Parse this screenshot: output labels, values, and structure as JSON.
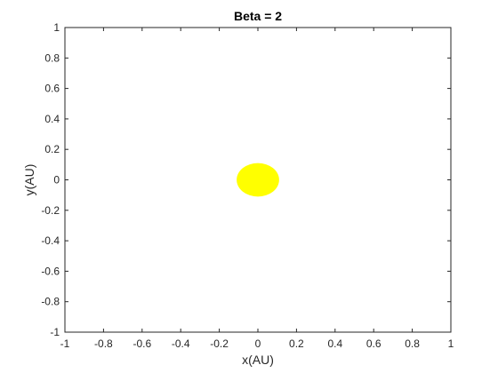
{
  "chart_data": {
    "type": "scatter",
    "title": "Beta = 2",
    "xlabel": "x(AU)",
    "ylabel": "y(AU)",
    "xlim": [
      -1,
      1
    ],
    "ylim": [
      -1,
      1
    ],
    "xticks": [
      -1,
      -0.8,
      -0.6,
      -0.4,
      -0.2,
      0,
      0.2,
      0.4,
      0.6,
      0.8,
      1
    ],
    "yticks": [
      -1,
      -0.8,
      -0.6,
      -0.4,
      -0.2,
      0,
      0.2,
      0.4,
      0.6,
      0.8,
      1
    ],
    "xtick_labels": [
      "-1",
      "-0.8",
      "-0.6",
      "-0.4",
      "-0.2",
      "0",
      "0.2",
      "0.4",
      "0.6",
      "0.8",
      "1"
    ],
    "ytick_labels": [
      "-1",
      "-0.8",
      "-0.6",
      "-0.4",
      "-0.2",
      "0",
      "0.2",
      "0.4",
      "0.6",
      "0.8",
      "1"
    ],
    "grid": false,
    "box": true,
    "points": [
      {
        "x": 0,
        "y": 0,
        "radius": 0.11,
        "color": "#ffff00"
      }
    ]
  }
}
